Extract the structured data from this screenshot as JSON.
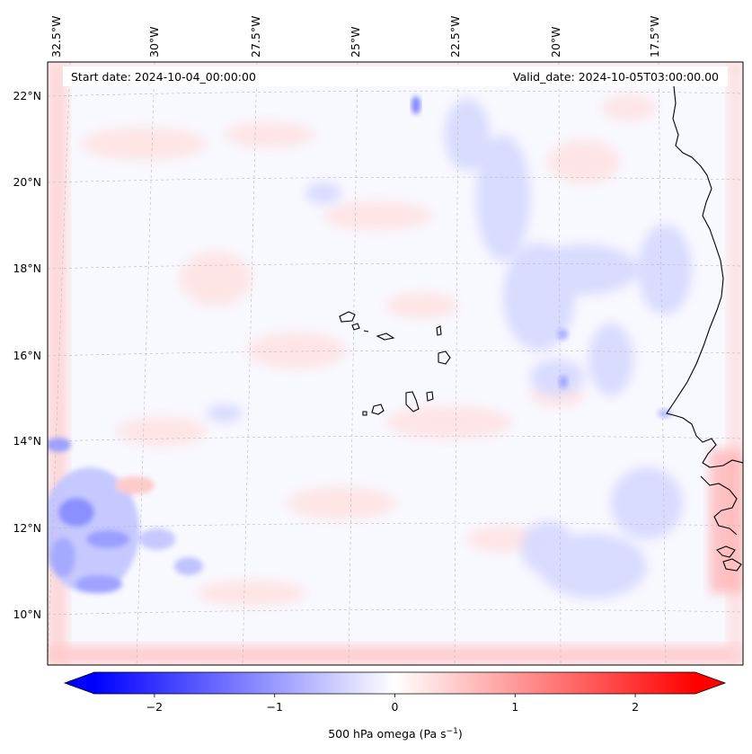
{
  "header": {
    "start_date": "Start date: 2024-10-04_00:00:00",
    "valid_date": "Valid_date: 2024-10-05T03:00:00.00"
  },
  "lon_labels": [
    "32.5°W",
    "30°W",
    "27.5°W",
    "25°W",
    "22.5°W",
    "20°W",
    "17.5°W"
  ],
  "lat_labels": [
    "22°N",
    "20°N",
    "18°N",
    "16°N",
    "14°N",
    "12°N",
    "10°N"
  ],
  "colorbar": {
    "ticks": [
      "−2",
      "−1",
      "0",
      "1",
      "2"
    ],
    "tick_values": [
      -2,
      -1,
      0,
      1,
      2
    ],
    "range": [
      -2.5,
      2.5
    ],
    "colors": {
      "negative": "#0000ff",
      "zero": "#ffffff",
      "positive": "#ff0000"
    },
    "label_main": "500 hPa omega (Pa s",
    "label_sup": "−1",
    "label_end": ")"
  },
  "chart_data": {
    "type": "heatmap",
    "variable": "500 hPa omega",
    "units": "Pa s−1",
    "lon_ticks": [
      -32.5,
      -30,
      -27.5,
      -25,
      -22.5,
      -20,
      -17.5
    ],
    "lat_ticks": [
      22,
      20,
      18,
      16,
      14,
      12,
      10
    ],
    "vmin": -2.5,
    "vmax": 2.5,
    "grid": true
  }
}
